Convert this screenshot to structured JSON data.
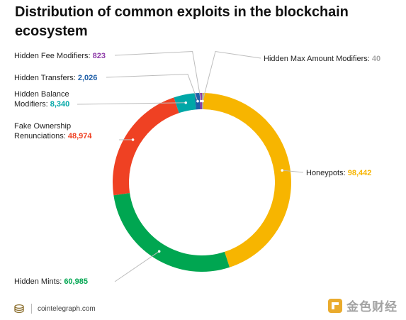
{
  "title": "Distribution of common exploits in the blockchain ecosystem",
  "footer": {
    "site": "cointelegraph.com",
    "logo_icon": "cointelegraph-logo-icon"
  },
  "watermark": {
    "text": "金色财经",
    "icon": "jinse-logo-icon"
  },
  "chart_data": {
    "type": "pie",
    "donut": true,
    "start_at": "top",
    "direction": "clockwise",
    "slices": [
      {
        "name": "Hidden Max Amount Modifiers",
        "value": 40,
        "color": "#a6a6a6"
      },
      {
        "name": "Honeypots",
        "value": 98442,
        "color": "#f7b500"
      },
      {
        "name": "Hidden Mints",
        "value": 60985,
        "color": "#00a651"
      },
      {
        "name": "Fake Ownership Renunciations",
        "value": 48974,
        "color": "#ef4123"
      },
      {
        "name": "Hidden Balance Modifiers",
        "value": 8340,
        "color": "#00a7a7"
      },
      {
        "name": "Hidden Transfers",
        "value": 2026,
        "color": "#1f5fa8"
      },
      {
        "name": "Hidden Fee Modifiers",
        "value": 823,
        "color": "#8e3ca8"
      }
    ],
    "labels": [
      {
        "slice": 0,
        "lines": [
          "Hidden Max Amount Modifiers: "
        ],
        "value_text": "40",
        "value_color": "#a6a6a6"
      },
      {
        "slice": 1,
        "lines": [
          "Honeypots: "
        ],
        "value_text": "98,442",
        "value_color": "#f7b500"
      },
      {
        "slice": 2,
        "lines": [
          "Hidden Mints: "
        ],
        "value_text": "60,985",
        "value_color": "#00a651"
      },
      {
        "slice": 3,
        "lines": [
          "Fake Ownership",
          "Renunciations: "
        ],
        "value_text": "48,974",
        "value_color": "#ef4123"
      },
      {
        "slice": 4,
        "lines": [
          "Hidden Balance",
          "Modifiers: "
        ],
        "value_text": "8,340",
        "value_color": "#00a7a7"
      },
      {
        "slice": 5,
        "lines": [
          "Hidden Transfers: "
        ],
        "value_text": "2,026",
        "value_color": "#1f5fa8"
      },
      {
        "slice": 6,
        "lines": [
          "Hidden Fee Modifiers: "
        ],
        "value_text": "823",
        "value_color": "#8e3ca8"
      }
    ]
  }
}
